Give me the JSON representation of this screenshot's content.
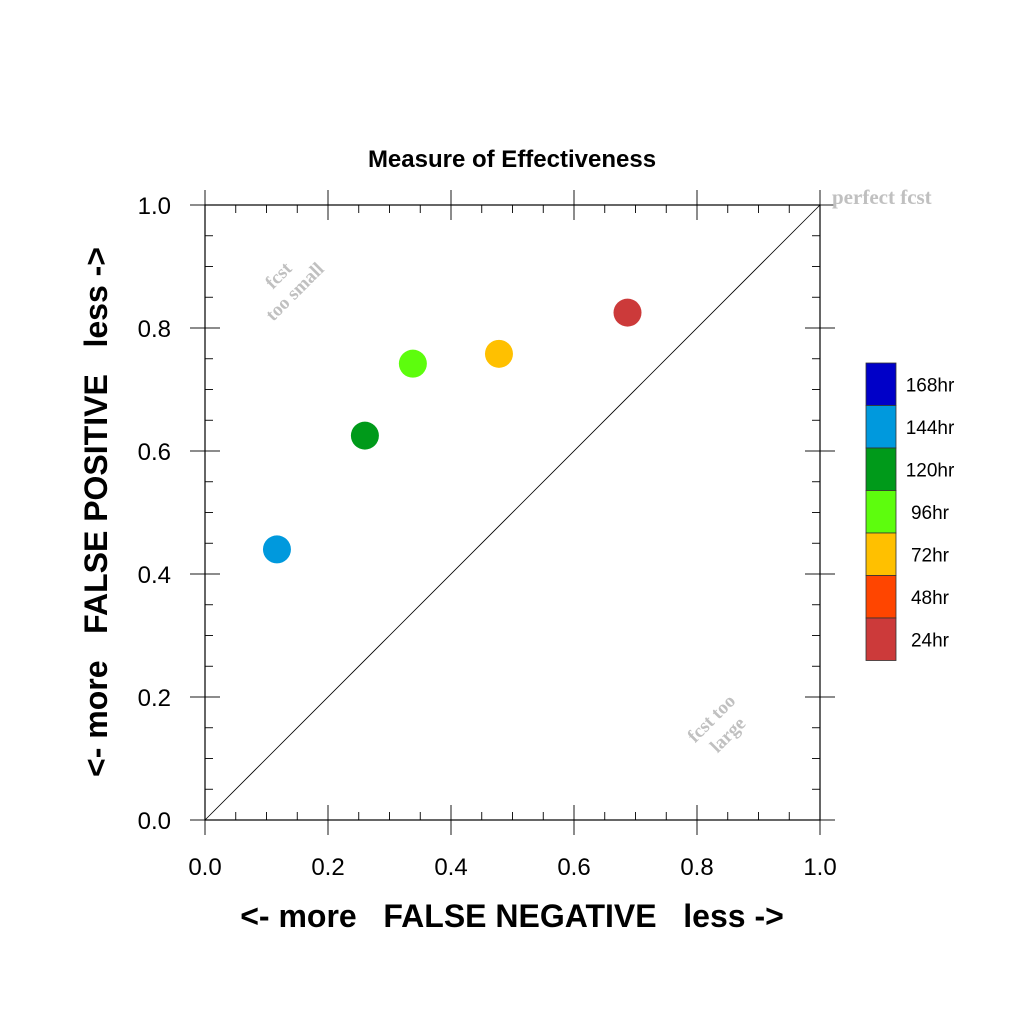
{
  "chart_data": {
    "type": "scatter",
    "title": "Measure of Effectiveness",
    "xlabel": "<- more   FALSE NEGATIVE   less ->",
    "ylabel": "<- more   FALSE POSITIVE   less ->",
    "xlim": [
      0.0,
      1.0
    ],
    "ylim": [
      0.0,
      1.0
    ],
    "x_ticks": [
      "0.0",
      "0.2",
      "0.4",
      "0.6",
      "0.8",
      "1.0"
    ],
    "y_ticks": [
      "0.0",
      "0.2",
      "0.4",
      "0.6",
      "0.8",
      "1.0"
    ],
    "grid": false,
    "reference_line": {
      "from": [
        0.0,
        0.0
      ],
      "to": [
        1.0,
        1.0
      ]
    },
    "points": [
      {
        "name": "144hr",
        "x": 0.117,
        "y": 0.44,
        "color": "#0099dd"
      },
      {
        "name": "120hr",
        "x": 0.26,
        "y": 0.625,
        "color": "#009a1a"
      },
      {
        "name": "96hr",
        "x": 0.338,
        "y": 0.742,
        "color": "#5dfd0d"
      },
      {
        "name": "72hr",
        "x": 0.478,
        "y": 0.758,
        "color": "#ffc000"
      },
      {
        "name": "24hr",
        "x": 0.687,
        "y": 0.825,
        "color": "#cc3a3a"
      }
    ],
    "legend": {
      "placement": "right",
      "entries": [
        {
          "label": "168hr",
          "color": "#0000c8"
        },
        {
          "label": "144hr",
          "color": "#0099dd"
        },
        {
          "label": "120hr",
          "color": "#009a1a"
        },
        {
          "label": "96hr",
          "color": "#5dfd0d"
        },
        {
          "label": "72hr",
          "color": "#ffc000"
        },
        {
          "label": "48hr",
          "color": "#ff4500"
        },
        {
          "label": "24hr",
          "color": "#cc3a3a"
        }
      ]
    },
    "annotations": {
      "perfect": "perfect fcst",
      "small_line1": "fcst",
      "small_line2": "too small",
      "large_line1": "fcst too",
      "large_line2": "large"
    }
  }
}
